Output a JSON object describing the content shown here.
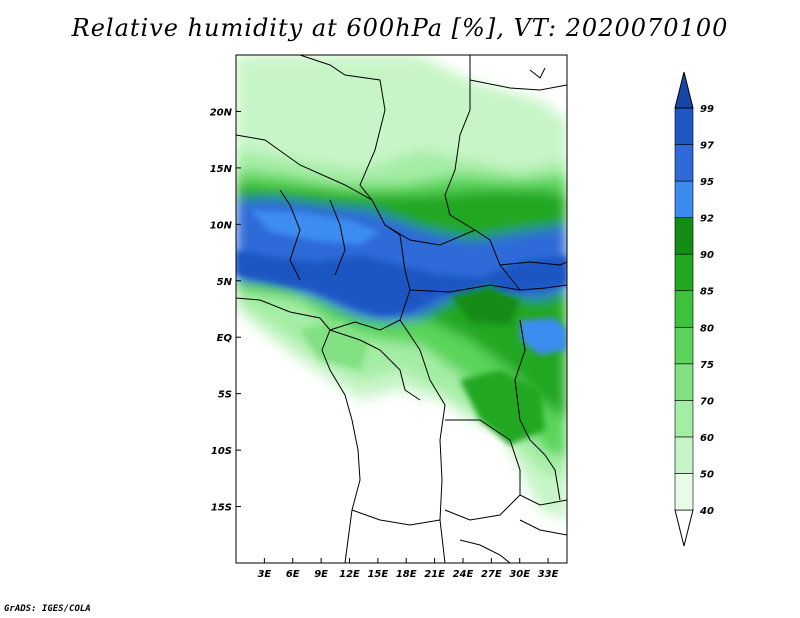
{
  "title": "Relative humidity at 600hPa [%], VT: 2020070100",
  "credit": "GrADS: IGES/COLA",
  "map": {
    "lon_range": [
      0,
      35
    ],
    "lat_range": [
      -20,
      25
    ],
    "lat_ticks": [
      {
        "value": 20,
        "label": "20N"
      },
      {
        "value": 15,
        "label": "15N"
      },
      {
        "value": 10,
        "label": "10N"
      },
      {
        "value": 5,
        "label": "5N"
      },
      {
        "value": 0,
        "label": "EQ"
      },
      {
        "value": -5,
        "label": "5S"
      },
      {
        "value": -10,
        "label": "10S"
      },
      {
        "value": -15,
        "label": "15S"
      }
    ],
    "lon_ticks": [
      {
        "value": 3,
        "label": "3E"
      },
      {
        "value": 6,
        "label": "6E"
      },
      {
        "value": 9,
        "label": "9E"
      },
      {
        "value": 12,
        "label": "12E"
      },
      {
        "value": 15,
        "label": "15E"
      },
      {
        "value": 18,
        "label": "18E"
      },
      {
        "value": 21,
        "label": "21E"
      },
      {
        "value": 24,
        "label": "24E"
      },
      {
        "value": 27,
        "label": "27E"
      },
      {
        "value": 30,
        "label": "30E"
      },
      {
        "value": 33,
        "label": "33E"
      }
    ]
  },
  "colorbar": {
    "levels": [
      "40",
      "50",
      "60",
      "70",
      "75",
      "80",
      "85",
      "90",
      "92",
      "95",
      "97",
      "99"
    ],
    "colors": [
      "#ffffff",
      "#e6fce6",
      "#c8f5c8",
      "#a4eda4",
      "#82e182",
      "#5ad45a",
      "#3cc23c",
      "#22a722",
      "#138c13",
      "#3c8cf0",
      "#2f6ad8",
      "#1e56c3",
      "#1646a8"
    ]
  }
}
